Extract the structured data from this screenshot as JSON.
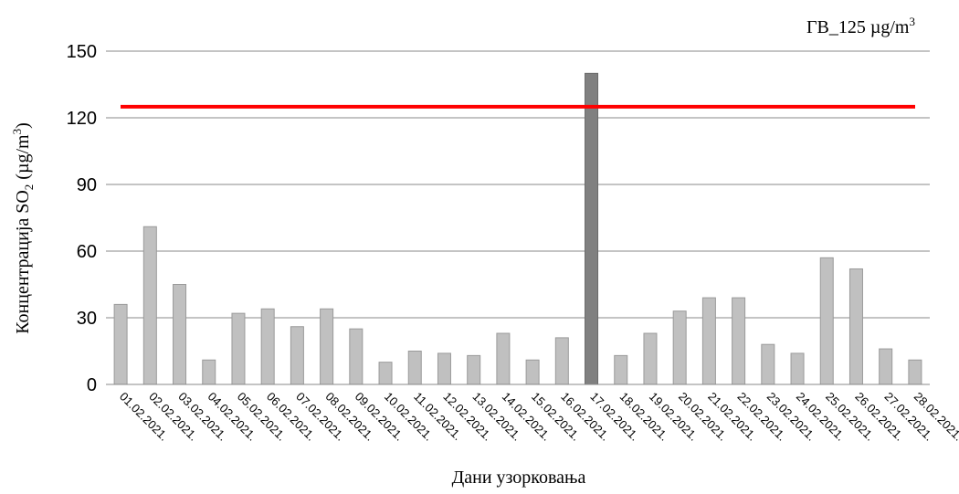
{
  "chart_data": {
    "type": "bar",
    "title": "",
    "xlabel": "Дани узорковања",
    "ylabel": {
      "prefix": "Концентрација  SO",
      "subscript": "2",
      "units_open": " (µg/m",
      "units_sup": "3",
      "units_close": ")"
    },
    "limit": {
      "label_prefix": "ГВ_125  µg/m",
      "label_sup": "3",
      "value": 125,
      "color": "#ff0000"
    },
    "ylim": [
      0,
      150
    ],
    "yticks": [
      0,
      30,
      60,
      90,
      120,
      150
    ],
    "grid": true,
    "bar_color": "#c0c0c0",
    "exceed_color": "#808080",
    "categories": [
      "01.02.2021.",
      "02.02.2021.",
      "03.02.2021.",
      "04.02.2021.",
      "05.02.2021.",
      "06.02.2021.",
      "07.02.2021.",
      "08.02.2021.",
      "09.02.2021.",
      "10.02.2021.",
      "11.02.2021.",
      "12.02.2021.",
      "13.02.2021.",
      "14.02.2021.",
      "15.02.2021.",
      "16.02.2021.",
      "17.02.2021.",
      "18.02.2021.",
      "19.02.2021.",
      "20.02.2021.",
      "21.02.2021.",
      "22.02.2021.",
      "23.02.2021.",
      "24.02.2021.",
      "25.02.2021.",
      "26.02.2021.",
      "27.02.2021.",
      "28.02.2021."
    ],
    "values": [
      36,
      71,
      45,
      11,
      32,
      34,
      26,
      34,
      25,
      10,
      15,
      14,
      13,
      23,
      11,
      21,
      140,
      13,
      23,
      33,
      39,
      39,
      18,
      14,
      57,
      52,
      16,
      11
    ]
  }
}
